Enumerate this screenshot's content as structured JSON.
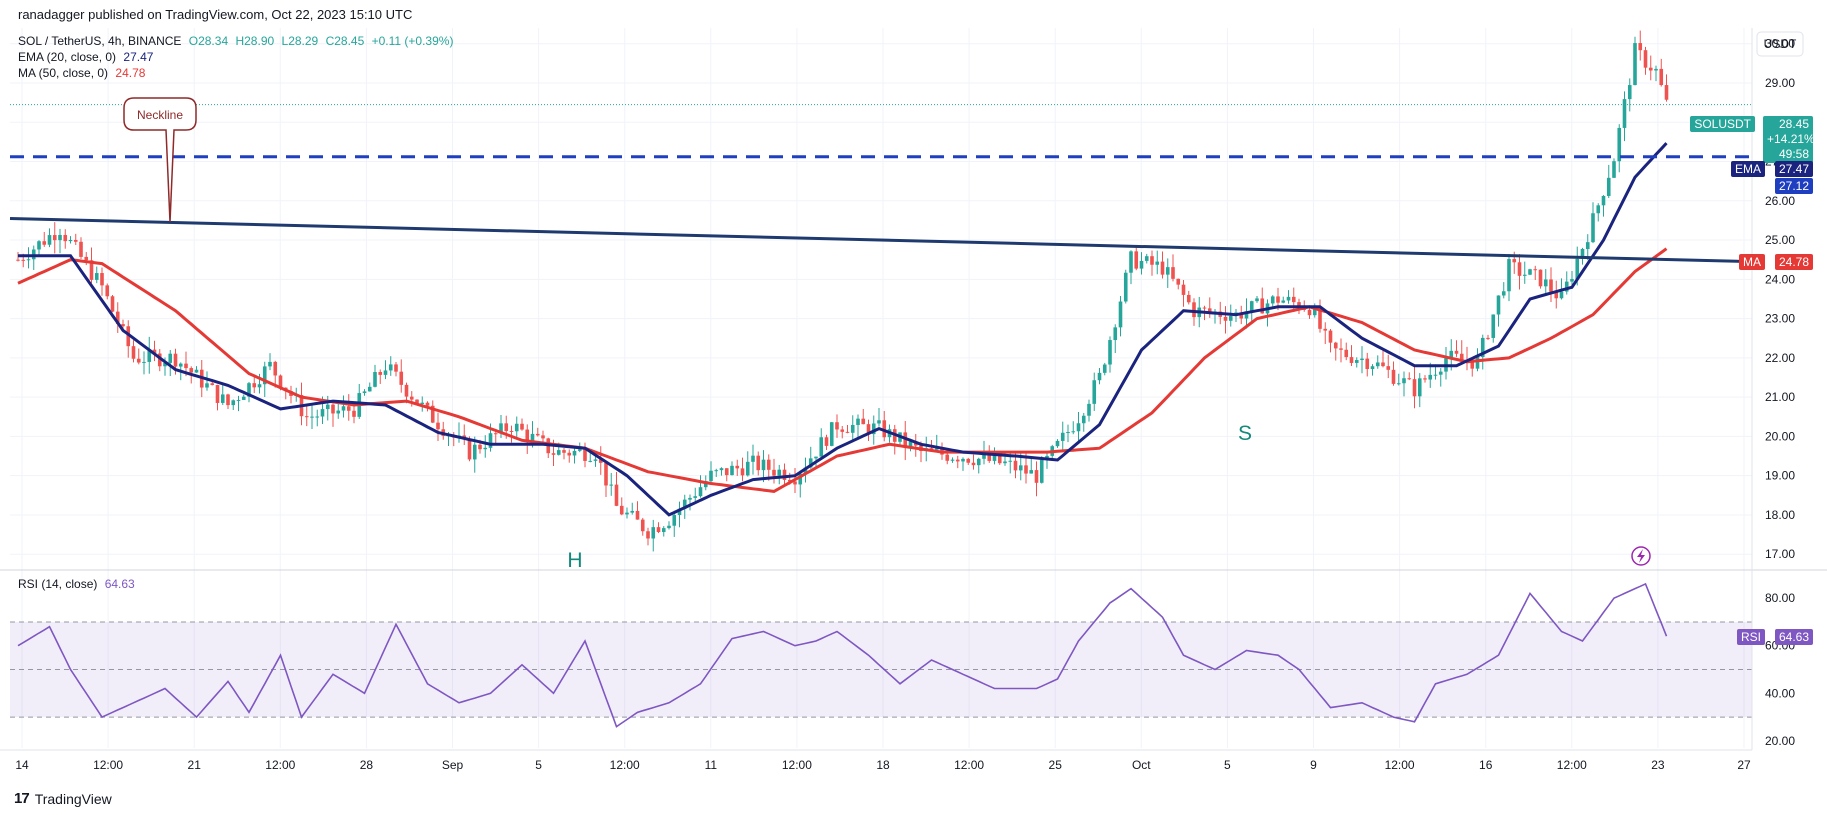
{
  "publish_line": "ranadagger published on TradingView.com, Oct 22, 2023 15:10 UTC",
  "legend": {
    "symbol": "SOL / TetherUS, 4h, BINANCE",
    "open": "O28.34",
    "high": "H28.90",
    "low": "L28.29",
    "close": "C28.45",
    "change": "+0.11 (+0.39%)",
    "ema_label": "EMA (20, close, 0)",
    "ema_value": "27.47",
    "ma_label": "MA (50, close, 0)",
    "ma_value": "24.78",
    "rsi_label": "RSI (14, close)",
    "rsi_value": "64.63"
  },
  "currency_label": "USDT",
  "badges": {
    "symbol": "SOLUSDT",
    "price": "28.45",
    "pct": "+14.21%",
    "timer": "49:58",
    "ema_name": "EMA",
    "ema_value": "27.47",
    "level_value": "27.12",
    "ma_name": "MA",
    "ma_value": "24.78",
    "rsi_name": "RSI",
    "rsi_value": "64.63"
  },
  "annotations": {
    "neckline": "Neckline",
    "head": "H",
    "shoulder": "S"
  },
  "footer_logo": "TradingView",
  "colors": {
    "up": "#26a69a",
    "down": "#ef5350",
    "ema": "#1a237e",
    "ma": "#e53935",
    "level": "#1e3fbf",
    "neckline": "#1f3a6e",
    "rsi": "#7e57c2",
    "pattern_text": "#12897b"
  },
  "chart_data": {
    "type": "candlestick",
    "price_axis": {
      "ticks": [
        17,
        18,
        19,
        20,
        21,
        22,
        23,
        24,
        25,
        26,
        27,
        28,
        29,
        30
      ],
      "range": [
        16.7,
        30.4
      ]
    },
    "rsi_axis": {
      "ticks": [
        20,
        40,
        60,
        80
      ],
      "range": [
        17,
        91
      ],
      "band": [
        30,
        70
      ]
    },
    "time_axis": {
      "ticks": [
        "14",
        "12:00",
        "21",
        "12:00",
        "28",
        "Sep",
        "5",
        "12:00",
        "11",
        "12:00",
        "18",
        "12:00",
        "25",
        "Oct",
        "5",
        "9",
        "12:00",
        "16",
        "12:00",
        "23",
        "27"
      ]
    },
    "horizontal_level": 27.12,
    "neckline": {
      "start": 25.55,
      "end": 24.45
    },
    "price_keypoints": [
      [
        0,
        24.5
      ],
      [
        8,
        25.3
      ],
      [
        16,
        23.8
      ],
      [
        22,
        22.0
      ],
      [
        30,
        22.0
      ],
      [
        40,
        20.8
      ],
      [
        48,
        21.8
      ],
      [
        55,
        20.5
      ],
      [
        64,
        20.7
      ],
      [
        70,
        21.8
      ],
      [
        78,
        20.6
      ],
      [
        86,
        19.6
      ],
      [
        94,
        20.3
      ],
      [
        102,
        19.6
      ],
      [
        110,
        19.6
      ],
      [
        114,
        18.2
      ],
      [
        120,
        17.6
      ],
      [
        124,
        17.9
      ],
      [
        132,
        19.0
      ],
      [
        140,
        19.3
      ],
      [
        148,
        19.0
      ],
      [
        156,
        20.3
      ],
      [
        164,
        20.2
      ],
      [
        172,
        19.6
      ],
      [
        180,
        19.5
      ],
      [
        188,
        19.3
      ],
      [
        194,
        19.0
      ],
      [
        202,
        20.5
      ],
      [
        206,
        21.5
      ],
      [
        212,
        24.5
      ],
      [
        218,
        24.3
      ],
      [
        224,
        23.2
      ],
      [
        232,
        23.1
      ],
      [
        240,
        23.5
      ],
      [
        246,
        23.3
      ],
      [
        250,
        22.2
      ],
      [
        258,
        21.9
      ],
      [
        266,
        21.2
      ],
      [
        272,
        22.0
      ],
      [
        278,
        21.9
      ],
      [
        284,
        24.3
      ],
      [
        290,
        24.0
      ],
      [
        294,
        23.5
      ],
      [
        300,
        25.5
      ],
      [
        304,
        27.1
      ],
      [
        308,
        29.8
      ],
      [
        312,
        29.3
      ],
      [
        314,
        28.45
      ]
    ],
    "ema_keypoints": [
      [
        0,
        24.6
      ],
      [
        10,
        24.6
      ],
      [
        20,
        22.7
      ],
      [
        30,
        21.7
      ],
      [
        40,
        21.3
      ],
      [
        50,
        20.7
      ],
      [
        60,
        20.9
      ],
      [
        70,
        20.8
      ],
      [
        80,
        20.1
      ],
      [
        90,
        19.8
      ],
      [
        100,
        19.8
      ],
      [
        108,
        19.7
      ],
      [
        116,
        19.0
      ],
      [
        124,
        18.0
      ],
      [
        132,
        18.5
      ],
      [
        140,
        18.9
      ],
      [
        148,
        19.0
      ],
      [
        156,
        19.7
      ],
      [
        164,
        20.2
      ],
      [
        172,
        19.8
      ],
      [
        180,
        19.6
      ],
      [
        190,
        19.5
      ],
      [
        198,
        19.4
      ],
      [
        206,
        20.3
      ],
      [
        214,
        22.2
      ],
      [
        222,
        23.2
      ],
      [
        232,
        23.1
      ],
      [
        240,
        23.3
      ],
      [
        248,
        23.3
      ],
      [
        256,
        22.5
      ],
      [
        266,
        21.8
      ],
      [
        274,
        21.8
      ],
      [
        282,
        22.3
      ],
      [
        288,
        23.5
      ],
      [
        296,
        23.8
      ],
      [
        302,
        25.0
      ],
      [
        308,
        26.6
      ],
      [
        314,
        27.47
      ]
    ],
    "ma_keypoints": [
      [
        0,
        23.9
      ],
      [
        10,
        24.5
      ],
      [
        16,
        24.4
      ],
      [
        30,
        23.2
      ],
      [
        44,
        21.6
      ],
      [
        54,
        21.0
      ],
      [
        64,
        20.8
      ],
      [
        74,
        20.9
      ],
      [
        84,
        20.5
      ],
      [
        96,
        19.9
      ],
      [
        108,
        19.7
      ],
      [
        120,
        19.1
      ],
      [
        132,
        18.8
      ],
      [
        144,
        18.6
      ],
      [
        156,
        19.5
      ],
      [
        166,
        19.8
      ],
      [
        176,
        19.6
      ],
      [
        186,
        19.6
      ],
      [
        196,
        19.6
      ],
      [
        206,
        19.7
      ],
      [
        216,
        20.6
      ],
      [
        226,
        22.0
      ],
      [
        236,
        23.0
      ],
      [
        246,
        23.3
      ],
      [
        256,
        22.9
      ],
      [
        266,
        22.2
      ],
      [
        276,
        21.9
      ],
      [
        284,
        22.0
      ],
      [
        292,
        22.5
      ],
      [
        300,
        23.1
      ],
      [
        308,
        24.2
      ],
      [
        314,
        24.78
      ]
    ],
    "rsi_keypoints": [
      [
        0,
        60
      ],
      [
        6,
        68
      ],
      [
        10,
        50
      ],
      [
        16,
        30
      ],
      [
        22,
        36
      ],
      [
        28,
        42
      ],
      [
        34,
        30
      ],
      [
        40,
        45
      ],
      [
        44,
        32
      ],
      [
        50,
        56
      ],
      [
        54,
        30
      ],
      [
        60,
        48
      ],
      [
        66,
        40
      ],
      [
        72,
        69
      ],
      [
        78,
        44
      ],
      [
        84,
        36
      ],
      [
        90,
        40
      ],
      [
        96,
        52
      ],
      [
        102,
        40
      ],
      [
        108,
        62
      ],
      [
        114,
        26
      ],
      [
        118,
        32
      ],
      [
        124,
        36
      ],
      [
        130,
        44
      ],
      [
        136,
        63
      ],
      [
        142,
        66
      ],
      [
        148,
        60
      ],
      [
        152,
        62
      ],
      [
        156,
        66
      ],
      [
        162,
        56
      ],
      [
        168,
        44
      ],
      [
        174,
        54
      ],
      [
        180,
        48
      ],
      [
        186,
        42
      ],
      [
        194,
        42
      ],
      [
        198,
        46
      ],
      [
        202,
        62
      ],
      [
        208,
        78
      ],
      [
        212,
        84
      ],
      [
        218,
        72
      ],
      [
        222,
        56
      ],
      [
        228,
        50
      ],
      [
        234,
        58
      ],
      [
        240,
        56
      ],
      [
        244,
        50
      ],
      [
        250,
        34
      ],
      [
        256,
        36
      ],
      [
        262,
        30
      ],
      [
        266,
        28
      ],
      [
        270,
        44
      ],
      [
        276,
        48
      ],
      [
        282,
        56
      ],
      [
        288,
        82
      ],
      [
        294,
        66
      ],
      [
        298,
        62
      ],
      [
        304,
        80
      ],
      [
        310,
        86
      ],
      [
        314,
        64
      ]
    ],
    "candle_count": 315
  }
}
